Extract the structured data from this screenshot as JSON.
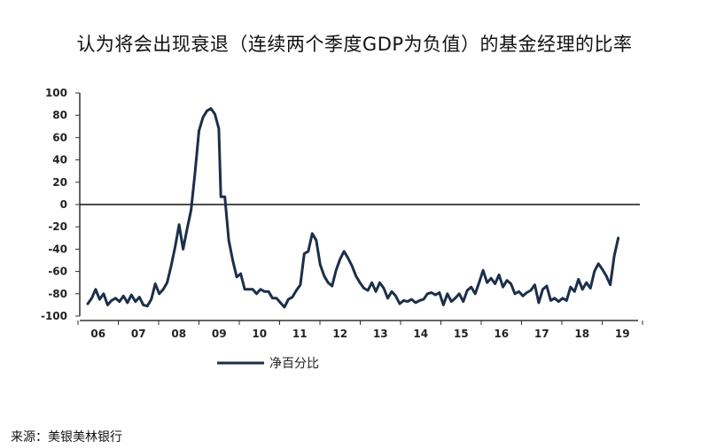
{
  "title": "认为将会出现衰退（连续两个季度GDP为负值）的基金经理的比率",
  "source": "来源：美银美林银行",
  "colors": {
    "series": "#1b2f4a",
    "axis": "#333333",
    "zero_line": "#111111"
  },
  "chart_data": {
    "type": "line",
    "title": "认为将会出现衰退（连续两个季度GDP为负值）的基金经理的比率",
    "xlabel": "",
    "ylabel": "",
    "ylim": [
      -100,
      100
    ],
    "yticks": [
      100,
      80,
      60,
      40,
      20,
      0,
      -20,
      -40,
      -60,
      -80,
      -100
    ],
    "xticks": [
      "06",
      "07",
      "08",
      "09",
      "10",
      "11",
      "12",
      "13",
      "14",
      "15",
      "16",
      "17",
      "18",
      "19"
    ],
    "grid": false,
    "legend_position": "bottom-left",
    "series": [
      {
        "name": "净百分比",
        "points": [
          [
            2006.0,
            -89
          ],
          [
            2006.1,
            -84
          ],
          [
            2006.2,
            -76
          ],
          [
            2006.3,
            -85
          ],
          [
            2006.4,
            -80
          ],
          [
            2006.5,
            -90
          ],
          [
            2006.6,
            -86
          ],
          [
            2006.7,
            -84
          ],
          [
            2006.8,
            -87
          ],
          [
            2006.9,
            -82
          ],
          [
            2007.0,
            -88
          ],
          [
            2007.1,
            -81
          ],
          [
            2007.2,
            -87
          ],
          [
            2007.3,
            -83
          ],
          [
            2007.4,
            -90
          ],
          [
            2007.5,
            -91
          ],
          [
            2007.6,
            -85
          ],
          [
            2007.7,
            -71
          ],
          [
            2007.8,
            -80
          ],
          [
            2007.9,
            -76
          ],
          [
            2008.0,
            -70
          ],
          [
            2008.1,
            -55
          ],
          [
            2008.2,
            -38
          ],
          [
            2008.3,
            -18
          ],
          [
            2008.4,
            -40
          ],
          [
            2008.5,
            -22
          ],
          [
            2008.6,
            -5
          ],
          [
            2008.7,
            28
          ],
          [
            2008.8,
            66
          ],
          [
            2008.9,
            78
          ],
          [
            2009.0,
            84
          ],
          [
            2009.1,
            86
          ],
          [
            2009.2,
            81
          ],
          [
            2009.3,
            68
          ],
          [
            2009.35,
            7
          ],
          [
            2009.45,
            7
          ],
          [
            2009.55,
            -32
          ],
          [
            2009.65,
            -50
          ],
          [
            2009.75,
            -65
          ],
          [
            2009.85,
            -62
          ],
          [
            2009.95,
            -76
          ],
          [
            2010.05,
            -76
          ],
          [
            2010.15,
            -76
          ],
          [
            2010.25,
            -80
          ],
          [
            2010.35,
            -76
          ],
          [
            2010.45,
            -78
          ],
          [
            2010.55,
            -78
          ],
          [
            2010.65,
            -84
          ],
          [
            2010.75,
            -84
          ],
          [
            2010.85,
            -88
          ],
          [
            2010.95,
            -92
          ],
          [
            2011.05,
            -85
          ],
          [
            2011.15,
            -83
          ],
          [
            2011.25,
            -77
          ],
          [
            2011.35,
            -72
          ],
          [
            2011.45,
            -44
          ],
          [
            2011.55,
            -42
          ],
          [
            2011.65,
            -26
          ],
          [
            2011.75,
            -32
          ],
          [
            2011.85,
            -54
          ],
          [
            2011.95,
            -64
          ],
          [
            2012.05,
            -70
          ],
          [
            2012.15,
            -73
          ],
          [
            2012.25,
            -59
          ],
          [
            2012.35,
            -49
          ],
          [
            2012.45,
            -42
          ],
          [
            2012.55,
            -48
          ],
          [
            2012.65,
            -55
          ],
          [
            2012.75,
            -64
          ],
          [
            2012.85,
            -70
          ],
          [
            2012.95,
            -75
          ],
          [
            2013.05,
            -77
          ],
          [
            2013.15,
            -70
          ],
          [
            2013.25,
            -78
          ],
          [
            2013.35,
            -70
          ],
          [
            2013.45,
            -75
          ],
          [
            2013.55,
            -84
          ],
          [
            2013.65,
            -78
          ],
          [
            2013.75,
            -82
          ],
          [
            2013.85,
            -89
          ],
          [
            2013.95,
            -86
          ],
          [
            2014.05,
            -87
          ],
          [
            2014.15,
            -85
          ],
          [
            2014.25,
            -88
          ],
          [
            2014.35,
            -86
          ],
          [
            2014.45,
            -85
          ],
          [
            2014.55,
            -80
          ],
          [
            2014.65,
            -79
          ],
          [
            2014.75,
            -81
          ],
          [
            2014.85,
            -79
          ],
          [
            2014.95,
            -90
          ],
          [
            2015.05,
            -80
          ],
          [
            2015.15,
            -87
          ],
          [
            2015.25,
            -84
          ],
          [
            2015.35,
            -80
          ],
          [
            2015.45,
            -87
          ],
          [
            2015.55,
            -77
          ],
          [
            2015.65,
            -74
          ],
          [
            2015.75,
            -80
          ],
          [
            2015.85,
            -70
          ],
          [
            2015.95,
            -59
          ],
          [
            2016.05,
            -70
          ],
          [
            2016.15,
            -66
          ],
          [
            2016.25,
            -71
          ],
          [
            2016.35,
            -63
          ],
          [
            2016.45,
            -74
          ],
          [
            2016.55,
            -68
          ],
          [
            2016.65,
            -71
          ],
          [
            2016.75,
            -80
          ],
          [
            2016.85,
            -78
          ],
          [
            2016.95,
            -82
          ],
          [
            2017.05,
            -79
          ],
          [
            2017.15,
            -77
          ],
          [
            2017.25,
            -72
          ],
          [
            2017.35,
            -88
          ],
          [
            2017.45,
            -76
          ],
          [
            2017.55,
            -73
          ],
          [
            2017.65,
            -86
          ],
          [
            2017.75,
            -84
          ],
          [
            2017.85,
            -87
          ],
          [
            2017.95,
            -84
          ],
          [
            2018.05,
            -86
          ],
          [
            2018.15,
            -74
          ],
          [
            2018.25,
            -78
          ],
          [
            2018.35,
            -67
          ],
          [
            2018.45,
            -76
          ],
          [
            2018.55,
            -70
          ],
          [
            2018.65,
            -75
          ],
          [
            2018.75,
            -60
          ],
          [
            2018.85,
            -53
          ],
          [
            2018.95,
            -58
          ],
          [
            2019.05,
            -64
          ],
          [
            2019.15,
            -72
          ],
          [
            2019.25,
            -46
          ],
          [
            2019.35,
            -30
          ]
        ]
      }
    ]
  }
}
